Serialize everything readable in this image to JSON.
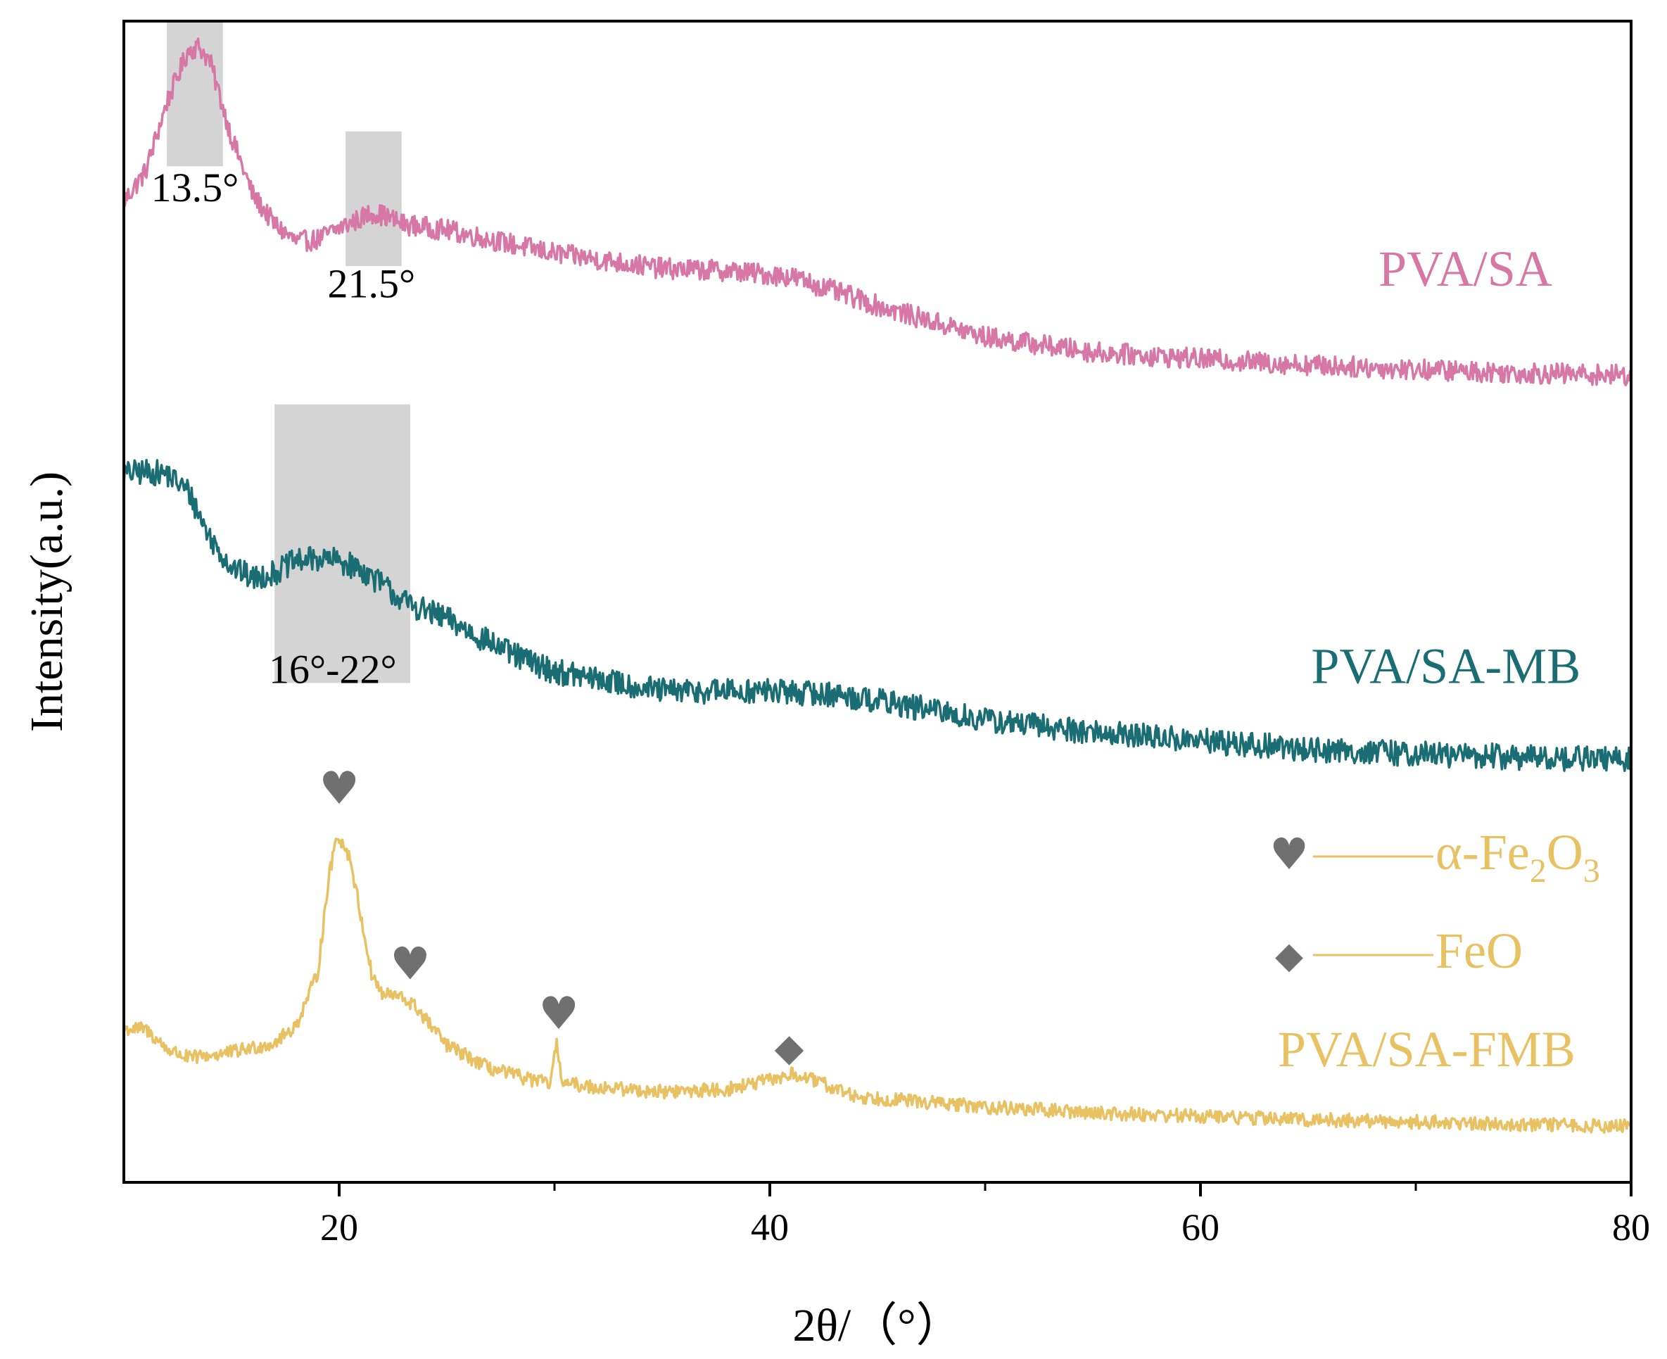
{
  "chart_data": {
    "type": "line",
    "title": "",
    "xlabel": "2θ/（°）",
    "ylabel": "Intensity(a.u.)",
    "xlim": [
      10,
      80
    ],
    "ylim": [
      0,
      1
    ],
    "x_ticks": [
      20,
      40,
      60,
      80
    ],
    "x_minor_ticks": [
      30,
      50,
      70
    ],
    "y_ticks_shown": false,
    "grid": false,
    "colors": {
      "PVA/SA": "#d677a6",
      "PVA/SA-MB": "#1a6e73",
      "PVA/SA-FMB": "#e8c162",
      "marker": "#707070",
      "highlight": "#cccccc"
    },
    "series": [
      {
        "name": "PVA/SA",
        "color": "#d677a6",
        "noise": 0.009,
        "points": [
          [
            10,
            0.845
          ],
          [
            11,
            0.87
          ],
          [
            12,
            0.93
          ],
          [
            13,
            0.975
          ],
          [
            13.5,
            0.978
          ],
          [
            14,
            0.965
          ],
          [
            15,
            0.9
          ],
          [
            16,
            0.85
          ],
          [
            17,
            0.825
          ],
          [
            18,
            0.81
          ],
          [
            19,
            0.812
          ],
          [
            20,
            0.822
          ],
          [
            21,
            0.83
          ],
          [
            21.5,
            0.835
          ],
          [
            22,
            0.833
          ],
          [
            23,
            0.825
          ],
          [
            25,
            0.82
          ],
          [
            30,
            0.8
          ],
          [
            35,
            0.787
          ],
          [
            38,
            0.785
          ],
          [
            41,
            0.78
          ],
          [
            45,
            0.755
          ],
          [
            50,
            0.728
          ],
          [
            55,
            0.715
          ],
          [
            60,
            0.709
          ],
          [
            65,
            0.704
          ],
          [
            70,
            0.7
          ],
          [
            75,
            0.697
          ],
          [
            80,
            0.695
          ]
        ]
      },
      {
        "name": "PVA/SA-MB",
        "color": "#1a6e73",
        "noise": 0.011,
        "points": [
          [
            10,
            0.61
          ],
          [
            11,
            0.612
          ],
          [
            12,
            0.61
          ],
          [
            13,
            0.595
          ],
          [
            14,
            0.555
          ],
          [
            15,
            0.53
          ],
          [
            16,
            0.52
          ],
          [
            17,
            0.525
          ],
          [
            18,
            0.535
          ],
          [
            19,
            0.537
          ],
          [
            20,
            0.535
          ],
          [
            21,
            0.528
          ],
          [
            22,
            0.515
          ],
          [
            23,
            0.5
          ],
          [
            25,
            0.485
          ],
          [
            28,
            0.455
          ],
          [
            30,
            0.44
          ],
          [
            35,
            0.423
          ],
          [
            40,
            0.423
          ],
          [
            43,
            0.42
          ],
          [
            45,
            0.415
          ],
          [
            50,
            0.398
          ],
          [
            55,
            0.388
          ],
          [
            60,
            0.38
          ],
          [
            65,
            0.373
          ],
          [
            70,
            0.369
          ],
          [
            75,
            0.366
          ],
          [
            80,
            0.364
          ]
        ]
      },
      {
        "name": "PVA/SA-FMB",
        "color": "#e8c162",
        "noise": 0.006,
        "points": [
          [
            10,
            0.132
          ],
          [
            11,
            0.132
          ],
          [
            12,
            0.115
          ],
          [
            13,
            0.107
          ],
          [
            15,
            0.112
          ],
          [
            17,
            0.12
          ],
          [
            18,
            0.135
          ],
          [
            19,
            0.18
          ],
          [
            19.5,
            0.26
          ],
          [
            19.9,
            0.3
          ],
          [
            20.5,
            0.28
          ],
          [
            21,
            0.23
          ],
          [
            21.5,
            0.18
          ],
          [
            22,
            0.162
          ],
          [
            22.8,
            0.16
          ],
          [
            23.5,
            0.152
          ],
          [
            25,
            0.118
          ],
          [
            27,
            0.098
          ],
          [
            29,
            0.088
          ],
          [
            29.8,
            0.085
          ],
          [
            30.1,
            0.118
          ],
          [
            30.4,
            0.085
          ],
          [
            32,
            0.082
          ],
          [
            35,
            0.078
          ],
          [
            38,
            0.08
          ],
          [
            40,
            0.088
          ],
          [
            41,
            0.093
          ],
          [
            42,
            0.088
          ],
          [
            44,
            0.074
          ],
          [
            50,
            0.065
          ],
          [
            55,
            0.06
          ],
          [
            60,
            0.057
          ],
          [
            65,
            0.054
          ],
          [
            70,
            0.052
          ],
          [
            75,
            0.05
          ],
          [
            80,
            0.048
          ]
        ]
      }
    ],
    "highlights": [
      {
        "x": [
          12,
          14.6
        ],
        "y": [
          0.875,
          1.0
        ]
      },
      {
        "x": [
          20.3,
          22.9
        ],
        "y": [
          0.789,
          0.905
        ]
      },
      {
        "x": [
          17,
          23.3
        ],
        "y": [
          0.43,
          0.67
        ]
      }
    ],
    "annotations": [
      {
        "text": "13.5°",
        "x": 13.3,
        "y": 0.845
      },
      {
        "text": "21.5°",
        "x": 21.5,
        "y": 0.762
      },
      {
        "text": "16°-22°",
        "x": 19.7,
        "y": 0.43
      }
    ],
    "series_labels": [
      {
        "text": "PVA/SA",
        "x": 72.3,
        "y": 0.772,
        "color": "#d677a6"
      },
      {
        "text": "PVA/SA-MB",
        "x": 71.4,
        "y": 0.43,
        "color": "#1a6e73"
      },
      {
        "text": "PVA/SA-FMB",
        "x": 70.5,
        "y": 0.1,
        "color": "#e8c162"
      }
    ],
    "peak_markers": [
      {
        "symbol": "♥",
        "x": 20,
        "y": 0.326
      },
      {
        "symbol": "♥",
        "x": 23.3,
        "y": 0.175
      },
      {
        "symbol": "♥",
        "x": 30.2,
        "y": 0.132
      },
      {
        "symbol": "◆",
        "x": 40.9,
        "y": 0.105
      }
    ],
    "legend": {
      "position": "right",
      "items": [
        {
          "symbol": "♥",
          "label": "α-Fe",
          "sub1": "2",
          "mid": "O",
          "sub2": "3"
        },
        {
          "symbol": "◆",
          "label": "FeO",
          "sub1": "",
          "mid": "",
          "sub2": ""
        }
      ]
    }
  }
}
